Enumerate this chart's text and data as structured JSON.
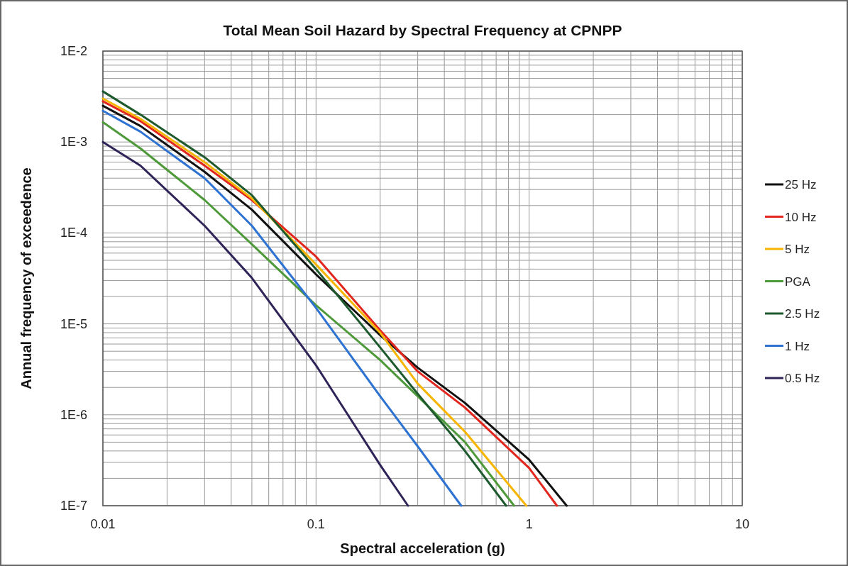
{
  "chart_data": {
    "type": "line",
    "title": "Total Mean Soil Hazard by Spectral Frequency at CPNPP",
    "xlabel": "Spectral acceleration (g)",
    "ylabel": "Annual frequency of exceedence",
    "log": "xy",
    "grid": true,
    "legend": "right",
    "line_style": "solid",
    "marker": "none",
    "xlim": [
      0.01,
      10
    ],
    "xticks": [
      0.01,
      0.1,
      1,
      10
    ],
    "ylim": [
      1e-07,
      0.01
    ],
    "yticks": [
      {
        "value": 1e-07,
        "label": "1E-7"
      },
      {
        "value": 1e-06,
        "label": "1E-6"
      },
      {
        "value": 1e-05,
        "label": "1E-5"
      },
      {
        "value": 0.0001,
        "label": "1E-4"
      },
      {
        "value": 0.001,
        "label": "1E-3"
      },
      {
        "value": 0.01,
        "label": "1E-2"
      }
    ],
    "series": [
      {
        "name": "25 Hz",
        "color": "#111111",
        "x": [
          0.01,
          0.015,
          0.03,
          0.05,
          0.1,
          0.2,
          0.3,
          0.5,
          1,
          1.5
        ],
        "values": [
          0.0025,
          0.0015,
          0.00047,
          0.00018,
          3.5e-05,
          7.5e-06,
          3.3e-06,
          1.35e-06,
          3.2e-07,
          1e-07
        ]
      },
      {
        "name": "10 Hz",
        "color": "#e2261e",
        "x": [
          0.01,
          0.015,
          0.03,
          0.05,
          0.1,
          0.2,
          0.3,
          0.5,
          1,
          1.35
        ],
        "values": [
          0.0028,
          0.0017,
          0.00055,
          0.00023,
          5.5e-05,
          8.5e-06,
          3e-06,
          1.2e-06,
          2.6e-07,
          1e-07
        ]
      },
      {
        "name": "5 Hz",
        "color": "#f7b500",
        "x": [
          0.01,
          0.015,
          0.03,
          0.05,
          0.1,
          0.2,
          0.3,
          0.5,
          0.97
        ],
        "values": [
          0.003,
          0.0018,
          0.0006,
          0.00024,
          4.5e-05,
          8e-06,
          2.2e-06,
          6.5e-07,
          1e-07
        ]
      },
      {
        "name": "PGA",
        "color": "#4e9a3a",
        "x": [
          0.01,
          0.015,
          0.03,
          0.05,
          0.1,
          0.2,
          0.3,
          0.5,
          0.85
        ],
        "values": [
          0.00165,
          0.00085,
          0.00023,
          7.5e-05,
          1.6e-05,
          4e-06,
          1.6e-06,
          5e-07,
          1e-07
        ]
      },
      {
        "name": "2.5 Hz",
        "color": "#1e5a2e",
        "x": [
          0.01,
          0.015,
          0.03,
          0.05,
          0.1,
          0.2,
          0.3,
          0.5,
          0.78
        ],
        "values": [
          0.0036,
          0.002,
          0.00068,
          0.00026,
          4e-05,
          5.5e-06,
          1.7e-06,
          4e-07,
          1e-07
        ]
      },
      {
        "name": "1 Hz",
        "color": "#2e73d2",
        "x": [
          0.01,
          0.015,
          0.03,
          0.05,
          0.1,
          0.2,
          0.3,
          0.48
        ],
        "values": [
          0.0022,
          0.0013,
          0.0004,
          0.00012,
          1.5e-05,
          1.6e-06,
          4.5e-07,
          1e-07
        ]
      },
      {
        "name": "0.5 Hz",
        "color": "#2f2358",
        "x": [
          0.01,
          0.015,
          0.03,
          0.05,
          0.1,
          0.15,
          0.2,
          0.27
        ],
        "values": [
          0.001,
          0.00055,
          0.00012,
          3.2e-05,
          3.5e-06,
          8e-07,
          2.8e-07,
          1e-07
        ]
      }
    ]
  }
}
